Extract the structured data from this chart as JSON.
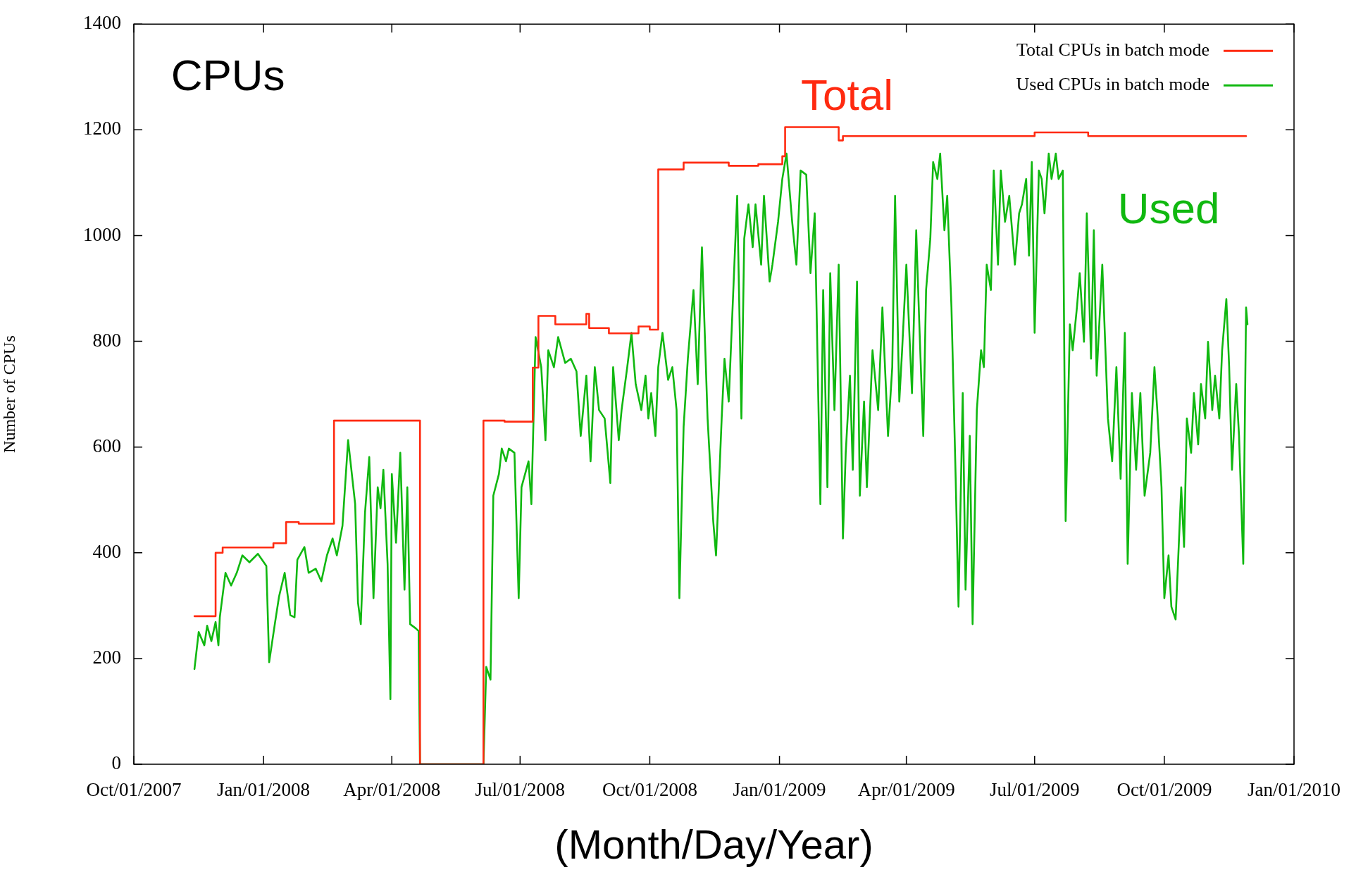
{
  "chart_data": {
    "type": "line",
    "xlabel": "(Month/Day/Year)",
    "ylabel": "Number of CPUs",
    "annotations": [
      "CPUs",
      "Total",
      "Used"
    ],
    "xlim": [
      "2007-10-01",
      "2010-01-01"
    ],
    "xticks": [
      {
        "value": "2007-10-01",
        "label": "Oct/01/2007"
      },
      {
        "value": "2008-01-01",
        "label": "Jan/01/2008"
      },
      {
        "value": "2008-04-01",
        "label": "Apr/01/2008"
      },
      {
        "value": "2008-07-01",
        "label": "Jul/01/2008"
      },
      {
        "value": "2008-10-01",
        "label": "Oct/01/2008"
      },
      {
        "value": "2009-01-01",
        "label": "Jan/01/2009"
      },
      {
        "value": "2009-04-01",
        "label": "Apr/01/2009"
      },
      {
        "value": "2009-07-01",
        "label": "Jul/01/2009"
      },
      {
        "value": "2009-10-01",
        "label": "Oct/01/2009"
      },
      {
        "value": "2010-01-01",
        "label": "Jan/01/2010"
      }
    ],
    "ylim": [
      0,
      1400
    ],
    "yticks": [
      0,
      200,
      400,
      600,
      800,
      1000,
      1200,
      1400
    ],
    "legend": "top right",
    "line_style": "solid",
    "series": [
      {
        "name": "Total CPUs in batch mode",
        "type": "step",
        "color": "#ff2a10",
        "x": [
          "2007-11-13",
          "2007-11-28",
          "2007-12-03",
          "2008-01-08",
          "2008-01-17",
          "2008-01-26",
          "2008-02-20",
          "2008-04-21",
          "2008-06-05",
          "2008-06-20",
          "2008-07-10",
          "2008-07-14",
          "2008-07-26",
          "2008-08-15",
          "2008-08-17",
          "2008-08-19",
          "2008-09-02",
          "2008-09-23",
          "2008-10-01",
          "2008-10-07",
          "2008-10-25",
          "2008-11-26",
          "2008-12-17",
          "2009-01-03",
          "2009-01-05",
          "2009-02-12",
          "2009-02-15",
          "2009-07-01",
          "2009-08-08",
          "2009-11-28"
        ],
        "values": [
          280,
          400,
          410,
          418,
          458,
          455,
          650,
          0,
          650,
          648,
          750,
          848,
          832,
          832,
          852,
          825,
          815,
          828,
          822,
          1125,
          1138,
          1132,
          1135,
          1150,
          1205,
          1180,
          1188,
          1195,
          1188,
          1188
        ]
      },
      {
        "name": "Used CPUs in batch mode",
        "type": "line",
        "color": "#10b810",
        "x": [
          "2007-11-13",
          "2007-11-16",
          "2007-11-20",
          "2007-11-22",
          "2007-11-25",
          "2007-11-28",
          "2007-11-30",
          "2007-12-01",
          "2007-12-05",
          "2007-12-09",
          "2007-12-13",
          "2007-12-17",
          "2007-12-22",
          "2007-12-28",
          "2008-01-03",
          "2008-01-05",
          "2008-01-09",
          "2008-01-12",
          "2008-01-16",
          "2008-01-20",
          "2008-01-23",
          "2008-01-25",
          "2008-01-30",
          "2008-02-02",
          "2008-02-07",
          "2008-02-11",
          "2008-02-15",
          "2008-02-19",
          "2008-02-22",
          "2008-02-26",
          "2008-03-01",
          "2008-03-06",
          "2008-03-08",
          "2008-03-10",
          "2008-03-13",
          "2008-03-16",
          "2008-03-19",
          "2008-03-22",
          "2008-03-24",
          "2008-03-26",
          "2008-03-29",
          "2008-03-31",
          "2008-04-01",
          "2008-04-04",
          "2008-04-07",
          "2008-04-10",
          "2008-04-12",
          "2008-04-14",
          "2008-04-18",
          "2008-04-20",
          "2008-04-21",
          "2008-06-05",
          "2008-06-07",
          "2008-06-10",
          "2008-06-12",
          "2008-06-16",
          "2008-06-18",
          "2008-06-21",
          "2008-06-23",
          "2008-06-27",
          "2008-06-30",
          "2008-07-02",
          "2008-07-07",
          "2008-07-09",
          "2008-07-12",
          "2008-07-16",
          "2008-07-19",
          "2008-07-21",
          "2008-07-25",
          "2008-07-28",
          "2008-08-02",
          "2008-08-06",
          "2008-08-10",
          "2008-08-13",
          "2008-08-17",
          "2008-08-20",
          "2008-08-23",
          "2008-08-26",
          "2008-08-30",
          "2008-09-03",
          "2008-09-05",
          "2008-09-09",
          "2008-09-11",
          "2008-09-15",
          "2008-09-18",
          "2008-09-21",
          "2008-09-25",
          "2008-09-28",
          "2008-09-30",
          "2008-10-02",
          "2008-10-05",
          "2008-10-07",
          "2008-10-10",
          "2008-10-14",
          "2008-10-17",
          "2008-10-20",
          "2008-10-22",
          "2008-10-25",
          "2008-10-28",
          "2008-11-01",
          "2008-11-04",
          "2008-11-07",
          "2008-11-11",
          "2008-11-15",
          "2008-11-17",
          "2008-11-21",
          "2008-11-23",
          "2008-11-26",
          "2008-11-30",
          "2008-12-02",
          "2008-12-05",
          "2008-12-07",
          "2008-12-10",
          "2008-12-13",
          "2008-12-15",
          "2008-12-19",
          "2008-12-21",
          "2008-12-25",
          "2008-12-27",
          "2008-12-31",
          "2009-01-03",
          "2009-01-06",
          "2009-01-10",
          "2009-01-13",
          "2009-01-16",
          "2009-01-20",
          "2009-01-23",
          "2009-01-26",
          "2009-01-30",
          "2009-02-01",
          "2009-02-04",
          "2009-02-06",
          "2009-02-09",
          "2009-02-12",
          "2009-02-15",
          "2009-02-17",
          "2009-02-20",
          "2009-02-22",
          "2009-02-25",
          "2009-02-27",
          "2009-03-02",
          "2009-03-04",
          "2009-03-08",
          "2009-03-12",
          "2009-03-15",
          "2009-03-19",
          "2009-03-22",
          "2009-03-24",
          "2009-03-27",
          "2009-03-29",
          "2009-04-01",
          "2009-04-05",
          "2009-04-08",
          "2009-04-10",
          "2009-04-13",
          "2009-04-15",
          "2009-04-18",
          "2009-04-20",
          "2009-04-23",
          "2009-04-25",
          "2009-04-28",
          "2009-04-30",
          "2009-05-03",
          "2009-05-06",
          "2009-05-08",
          "2009-05-11",
          "2009-05-13",
          "2009-05-16",
          "2009-05-18",
          "2009-05-21",
          "2009-05-24",
          "2009-05-26",
          "2009-05-28",
          "2009-05-31",
          "2009-06-02",
          "2009-06-05",
          "2009-06-07",
          "2009-06-10",
          "2009-06-13",
          "2009-06-17",
          "2009-06-20",
          "2009-06-22",
          "2009-06-25",
          "2009-06-27",
          "2009-06-29",
          "2009-07-01",
          "2009-07-04",
          "2009-07-06",
          "2009-07-08",
          "2009-07-11",
          "2009-07-13",
          "2009-07-16",
          "2009-07-18",
          "2009-07-21",
          "2009-07-23",
          "2009-07-26",
          "2009-07-28",
          "2009-07-31",
          "2009-08-02",
          "2009-08-05",
          "2009-08-07",
          "2009-08-10",
          "2009-08-12",
          "2009-08-14",
          "2009-08-18",
          "2009-08-22",
          "2009-08-25",
          "2009-08-28",
          "2009-08-31",
          "2009-09-03",
          "2009-09-05",
          "2009-09-08",
          "2009-09-11",
          "2009-09-14",
          "2009-09-17",
          "2009-09-21",
          "2009-09-24",
          "2009-09-26",
          "2009-09-29",
          "2009-10-01",
          "2009-10-04",
          "2009-10-06",
          "2009-10-09",
          "2009-10-13",
          "2009-10-15",
          "2009-10-17",
          "2009-10-20",
          "2009-10-22",
          "2009-10-25",
          "2009-10-27",
          "2009-10-30",
          "2009-11-01",
          "2009-11-04",
          "2009-11-06",
          "2009-11-09",
          "2009-11-11",
          "2009-11-14",
          "2009-11-16",
          "2009-11-18",
          "2009-11-21",
          "2009-11-23",
          "2009-11-26",
          "2009-11-28",
          "2009-11-29"
        ],
        "values": [
          180,
          250,
          225,
          262,
          233,
          269,
          225,
          278,
          362,
          338,
          362,
          395,
          382,
          398,
          375,
          193,
          265,
          317,
          362,
          282,
          278,
          387,
          411,
          362,
          370,
          346,
          395,
          427,
          395,
          451,
          613,
          492,
          306,
          265,
          476,
          581,
          314,
          524,
          484,
          557,
          379,
          123,
          549,
          419,
          589,
          330,
          524,
          265,
          257,
          252,
          0,
          0,
          184,
          160,
          508,
          549,
          597,
          573,
          597,
          589,
          314,
          524,
          573,
          492,
          808,
          751,
          613,
          783,
          751,
          808,
          759,
          767,
          743,
          621,
          735,
          573,
          751,
          670,
          654,
          532,
          751,
          613,
          670,
          751,
          816,
          719,
          670,
          735,
          654,
          702,
          621,
          751,
          816,
          727,
          751,
          670,
          314,
          638,
          767,
          897,
          719,
          978,
          654,
          460,
          395,
          654,
          767,
          686,
          945,
          1075,
          654,
          994,
          1059,
          978,
          1059,
          945,
          1075,
          913,
          945,
          1026,
          1107,
          1155,
          1026,
          945,
          1123,
          1115,
          929,
          1042,
          492,
          897,
          524,
          929,
          670,
          945,
          427,
          589,
          735,
          557,
          913,
          508,
          686,
          524,
          783,
          670,
          864,
          621,
          751,
          1075,
          686,
          783,
          945,
          702,
          1010,
          848,
          621,
          897,
          994,
          1139,
          1107,
          1155,
          1010,
          1075,
          864,
          540,
          298,
          702,
          330,
          621,
          265,
          670,
          783,
          751,
          945,
          897,
          1123,
          945,
          1123,
          1026,
          1075,
          945,
          1042,
          1059,
          1107,
          962,
          1139,
          816,
          1123,
          1107,
          1042,
          1155,
          1107,
          1155,
          1107,
          1123,
          460,
          832,
          783,
          864,
          929,
          799,
          1042,
          767,
          1010,
          735,
          945,
          654,
          573,
          751,
          540,
          816,
          379,
          702,
          557,
          702,
          508,
          589,
          751,
          670,
          524,
          314,
          395,
          298,
          274,
          524,
          411,
          654,
          589,
          702,
          605,
          719,
          654,
          799,
          670,
          735,
          654,
          783,
          880,
          751,
          557,
          719,
          621,
          379,
          864,
          832
        ]
      }
    ]
  }
}
